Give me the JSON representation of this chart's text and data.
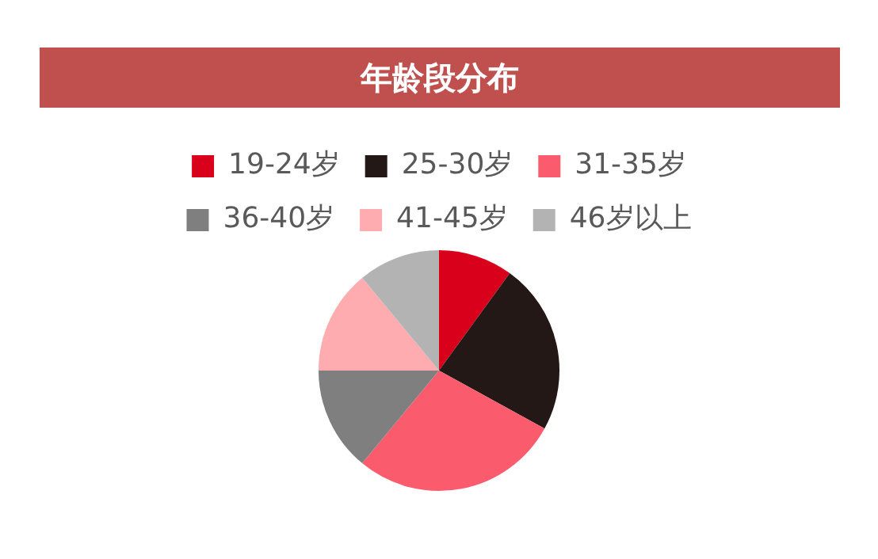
{
  "chart_data": {
    "type": "pie",
    "title": "年龄段分布",
    "categories": [
      "19-24岁",
      "25-30岁",
      "31-35岁",
      "36-40岁",
      "41-45岁",
      "46岁以上"
    ],
    "values": [
      10,
      23,
      28,
      14,
      14,
      11
    ],
    "colors": [
      "#d9001b",
      "#231815",
      "#fa5c6e",
      "#7f7f7f",
      "#ffacb0",
      "#b3b3b3"
    ],
    "legend": "top"
  }
}
